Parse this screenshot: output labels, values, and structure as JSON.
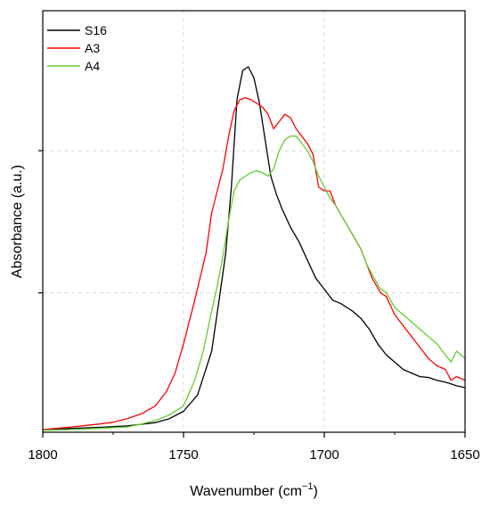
{
  "chart_data": {
    "type": "line",
    "xlabel": "Wavenumber (cm",
    "xlabel_sup": "−1",
    "xlabel_close": ")",
    "ylabel": "Absorbance (a.u.)",
    "xlim": [
      1800,
      1650
    ],
    "x_reversed": true,
    "ylim": [
      0,
      1
    ],
    "x_ticks": [
      1800,
      1750,
      1700,
      1650
    ],
    "y_ticks_unlabeled": [
      0.38,
      0.77
    ],
    "grid": "dashed",
    "legend_position": "top-left",
    "series": [
      {
        "name": "S16",
        "color": "#000000",
        "points": [
          [
            1800,
            0.005
          ],
          [
            1790,
            0.008
          ],
          [
            1780,
            0.011
          ],
          [
            1770,
            0.015
          ],
          [
            1760,
            0.024
          ],
          [
            1755,
            0.035
          ],
          [
            1750,
            0.055
          ],
          [
            1745,
            0.1
          ],
          [
            1740,
            0.22
          ],
          [
            1737,
            0.38
          ],
          [
            1735,
            0.49
          ],
          [
            1733,
            0.67
          ],
          [
            1731,
            0.91
          ],
          [
            1729,
            0.99
          ],
          [
            1727,
            1.0
          ],
          [
            1725,
            0.97
          ],
          [
            1723,
            0.9
          ],
          [
            1721,
            0.8
          ],
          [
            1719,
            0.7
          ],
          [
            1717,
            0.65
          ],
          [
            1715,
            0.61
          ],
          [
            1712,
            0.56
          ],
          [
            1709,
            0.52
          ],
          [
            1706,
            0.47
          ],
          [
            1703,
            0.42
          ],
          [
            1700,
            0.39
          ],
          [
            1697,
            0.36
          ],
          [
            1694,
            0.35
          ],
          [
            1690,
            0.33
          ],
          [
            1687,
            0.31
          ],
          [
            1684,
            0.28
          ],
          [
            1681,
            0.24
          ],
          [
            1678,
            0.21
          ],
          [
            1675,
            0.19
          ],
          [
            1672,
            0.17
          ],
          [
            1669,
            0.16
          ],
          [
            1666,
            0.15
          ],
          [
            1663,
            0.148
          ],
          [
            1660,
            0.14
          ],
          [
            1657,
            0.135
          ],
          [
            1655,
            0.13
          ],
          [
            1653,
            0.125
          ],
          [
            1650,
            0.12
          ]
        ]
      },
      {
        "name": "A3",
        "color": "#ff0000",
        "points": [
          [
            1800,
            0.005
          ],
          [
            1790,
            0.012
          ],
          [
            1780,
            0.02
          ],
          [
            1775,
            0.025
          ],
          [
            1770,
            0.035
          ],
          [
            1765,
            0.048
          ],
          [
            1760,
            0.07
          ],
          [
            1756,
            0.11
          ],
          [
            1753,
            0.16
          ],
          [
            1750,
            0.24
          ],
          [
            1746,
            0.36
          ],
          [
            1742,
            0.49
          ],
          [
            1740,
            0.6
          ],
          [
            1738,
            0.66
          ],
          [
            1736,
            0.72
          ],
          [
            1734,
            0.81
          ],
          [
            1732,
            0.88
          ],
          [
            1730,
            0.91
          ],
          [
            1728,
            0.915
          ],
          [
            1726,
            0.91
          ],
          [
            1724,
            0.9
          ],
          [
            1722,
            0.89
          ],
          [
            1720,
            0.87
          ],
          [
            1718,
            0.83
          ],
          [
            1716,
            0.85
          ],
          [
            1714,
            0.87
          ],
          [
            1712,
            0.86
          ],
          [
            1710,
            0.83
          ],
          [
            1708,
            0.81
          ],
          [
            1706,
            0.79
          ],
          [
            1704,
            0.76
          ],
          [
            1702,
            0.67
          ],
          [
            1700,
            0.66
          ],
          [
            1698,
            0.66
          ],
          [
            1696,
            0.62
          ],
          [
            1693,
            0.58
          ],
          [
            1690,
            0.54
          ],
          [
            1687,
            0.5
          ],
          [
            1685,
            0.46
          ],
          [
            1683,
            0.42
          ],
          [
            1680,
            0.38
          ],
          [
            1678,
            0.37
          ],
          [
            1675,
            0.32
          ],
          [
            1672,
            0.29
          ],
          [
            1669,
            0.26
          ],
          [
            1666,
            0.23
          ],
          [
            1663,
            0.2
          ],
          [
            1660,
            0.18
          ],
          [
            1657,
            0.17
          ],
          [
            1655,
            0.14
          ],
          [
            1653,
            0.15
          ],
          [
            1650,
            0.14
          ]
        ]
      },
      {
        "name": "A4",
        "color": "#66cc33",
        "points": [
          [
            1800,
            0.003
          ],
          [
            1790,
            0.005
          ],
          [
            1780,
            0.008
          ],
          [
            1770,
            0.012
          ],
          [
            1765,
            0.02
          ],
          [
            1760,
            0.03
          ],
          [
            1755,
            0.045
          ],
          [
            1750,
            0.07
          ],
          [
            1746,
            0.14
          ],
          [
            1743,
            0.22
          ],
          [
            1740,
            0.33
          ],
          [
            1738,
            0.4
          ],
          [
            1736,
            0.48
          ],
          [
            1734,
            0.58
          ],
          [
            1732,
            0.66
          ],
          [
            1730,
            0.69
          ],
          [
            1728,
            0.7
          ],
          [
            1726,
            0.71
          ],
          [
            1724,
            0.715
          ],
          [
            1722,
            0.71
          ],
          [
            1720,
            0.7
          ],
          [
            1718,
            0.72
          ],
          [
            1716,
            0.77
          ],
          [
            1714,
            0.8
          ],
          [
            1712,
            0.81
          ],
          [
            1710,
            0.81
          ],
          [
            1708,
            0.79
          ],
          [
            1706,
            0.77
          ],
          [
            1704,
            0.74
          ],
          [
            1702,
            0.7
          ],
          [
            1700,
            0.67
          ],
          [
            1698,
            0.64
          ],
          [
            1696,
            0.62
          ],
          [
            1693,
            0.58
          ],
          [
            1690,
            0.54
          ],
          [
            1687,
            0.5
          ],
          [
            1685,
            0.46
          ],
          [
            1683,
            0.43
          ],
          [
            1680,
            0.39
          ],
          [
            1678,
            0.38
          ],
          [
            1675,
            0.34
          ],
          [
            1672,
            0.32
          ],
          [
            1669,
            0.3
          ],
          [
            1666,
            0.28
          ],
          [
            1663,
            0.26
          ],
          [
            1660,
            0.24
          ],
          [
            1657,
            0.21
          ],
          [
            1655,
            0.19
          ],
          [
            1653,
            0.22
          ],
          [
            1650,
            0.2
          ]
        ]
      }
    ]
  }
}
